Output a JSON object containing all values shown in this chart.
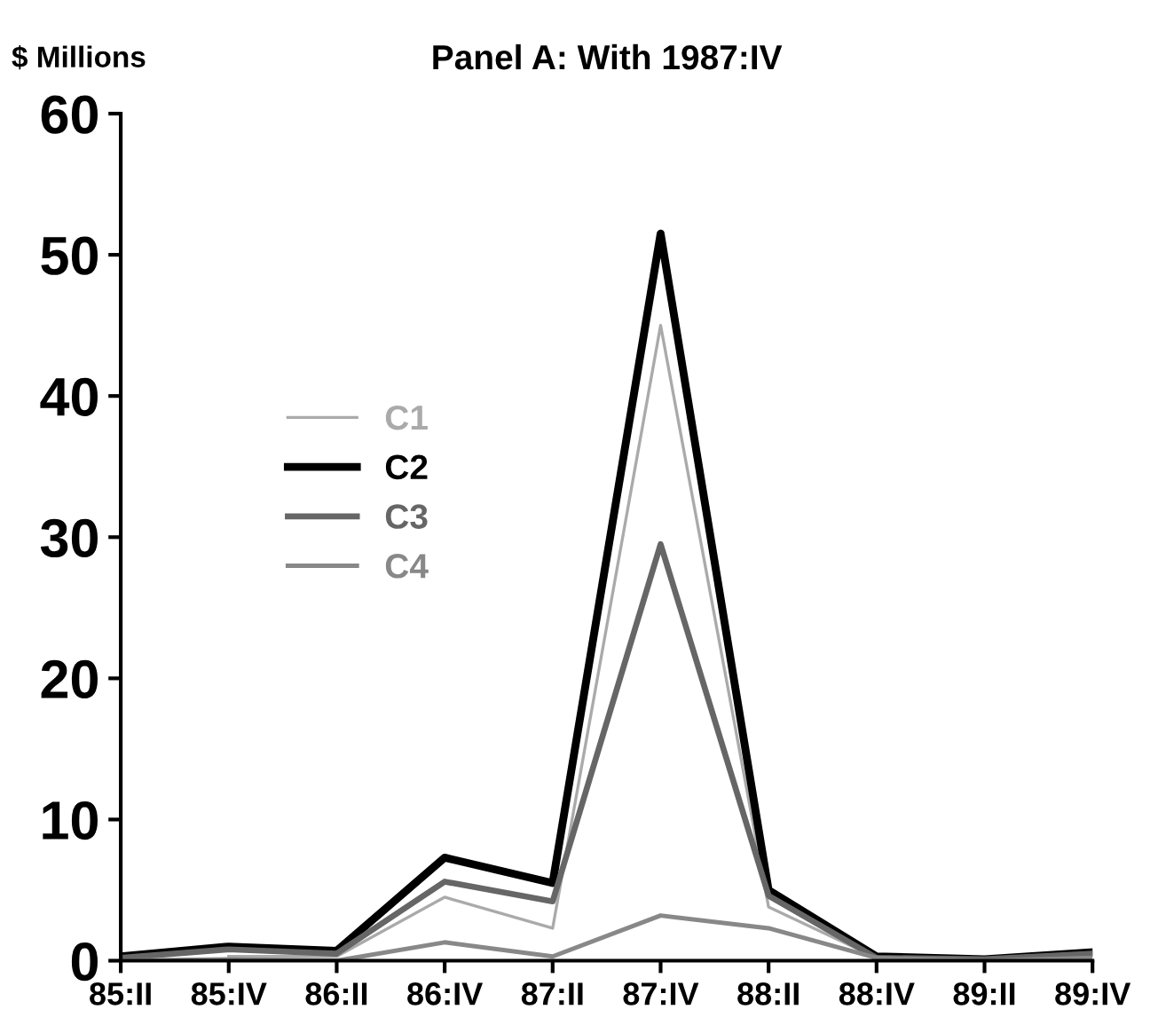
{
  "chart_data": {
    "type": "line",
    "title": "Panel A: With 1987:IV",
    "ylabel": "$ Millions",
    "categories": [
      "85:II",
      "85:IV",
      "86:II",
      "86:IV",
      "87:II",
      "87:IV",
      "88:II",
      "88:IV",
      "89:II",
      "89:IV"
    ],
    "series": [
      {
        "name": "C1",
        "color": "#aaaaaa",
        "values": [
          null,
          0.3,
          0.3,
          4.5,
          2.3,
          45,
          3.8,
          0.2,
          null,
          null
        ]
      },
      {
        "name": "C2",
        "color": "#000000",
        "values": [
          0.3,
          1.0,
          0.7,
          7.3,
          5.5,
          51.5,
          5.0,
          0.3,
          0.1,
          0.6
        ]
      },
      {
        "name": "C3",
        "color": "#666666",
        "values": [
          0.2,
          0.8,
          0.5,
          5.6,
          4.2,
          29.5,
          4.6,
          0.2,
          0.1,
          0.5
        ]
      },
      {
        "name": "C4",
        "color": "#888888",
        "values": [
          0,
          0.1,
          0,
          1.3,
          0.3,
          3.2,
          2.3,
          0.2,
          0,
          0.2
        ]
      }
    ],
    "ylim": [
      0,
      60
    ],
    "yticks": [
      0,
      10,
      20,
      30,
      40,
      50,
      60
    ],
    "grid": false,
    "legend": "left",
    "marker": "none",
    "line_style": "solid"
  }
}
